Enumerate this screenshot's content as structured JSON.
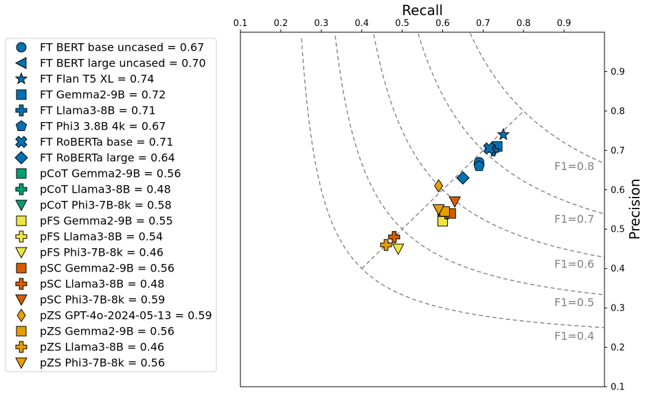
{
  "chart_data": {
    "type": "scatter",
    "title": "",
    "xlabel": "Recall",
    "ylabel": "Precision",
    "xlim": [
      0.1,
      1.0
    ],
    "ylim": [
      0.1,
      1.0
    ],
    "x_ticks": [
      0.1,
      0.2,
      0.3,
      0.4,
      0.5,
      0.6,
      0.7,
      0.8,
      0.9
    ],
    "y_ticks": [
      0.1,
      0.2,
      0.3,
      0.4,
      0.5,
      0.6,
      0.7,
      0.8,
      0.9
    ],
    "x_axis_position": "top",
    "y_axis_position": "right",
    "grid": false,
    "legend_position": "outside-left",
    "iso_f1_curves": [
      {
        "f1": 0.4,
        "label": "F1=0.4"
      },
      {
        "f1": 0.5,
        "label": "F1=0.5"
      },
      {
        "f1": 0.6,
        "label": "F1=0.6"
      },
      {
        "f1": 0.7,
        "label": "F1=0.7"
      },
      {
        "f1": 0.8,
        "label": "F1=0.8"
      }
    ],
    "diagonal": {
      "from": [
        0.4,
        0.4
      ],
      "to": [
        0.8,
        0.8
      ]
    },
    "colors": {
      "ft": "#0072B2",
      "pcot": "#009E73",
      "pfs": "#F0E442",
      "psc": "#D55E00",
      "pzs": "#E69F00",
      "curve": "#808080"
    },
    "series": [
      {
        "name": "FT BERT base uncased = 0.67",
        "marker": "circle",
        "color": "#0072B2",
        "x": 0.69,
        "y": 0.67
      },
      {
        "name": "FT BERT large uncased = 0.70",
        "marker": "triangle-left",
        "color": "#0072B2",
        "x": 0.72,
        "y": 0.705
      },
      {
        "name": "FT Flan T5 XL = 0.74",
        "marker": "star",
        "color": "#0072B2",
        "x": 0.75,
        "y": 0.74
      },
      {
        "name": "FT Gemma2-9B = 0.72",
        "marker": "square",
        "color": "#0072B2",
        "x": 0.735,
        "y": 0.71
      },
      {
        "name": "FT Llama3-8B = 0.71",
        "marker": "plus",
        "color": "#0072B2",
        "x": 0.725,
        "y": 0.7
      },
      {
        "name": "FT Phi3 3.8B 4k = 0.67",
        "marker": "pentagon",
        "color": "#0072B2",
        "x": 0.69,
        "y": 0.66
      },
      {
        "name": "FT RoBERTa base = 0.71",
        "marker": "x",
        "color": "#0072B2",
        "x": 0.715,
        "y": 0.705
      },
      {
        "name": "FT RoBERTa large = 0.64",
        "marker": "diamond",
        "color": "#0072B2",
        "x": 0.65,
        "y": 0.63
      },
      {
        "name": "pCoT Gemma2-9B = 0.56",
        "marker": "square",
        "color": "#009E73",
        "x": 0.6,
        "y": 0.54
      },
      {
        "name": "pCoT Llama3-8B = 0.48",
        "marker": "plus",
        "color": "#009E73",
        "x": 0.48,
        "y": 0.48
      },
      {
        "name": "pCoT Phi3-7B-8k = 0.58",
        "marker": "triangle-down",
        "color": "#009E73",
        "x": 0.59,
        "y": 0.55
      },
      {
        "name": "pFS Gemma2-9B = 0.55",
        "marker": "square",
        "color": "#F0E442",
        "x": 0.6,
        "y": 0.52
      },
      {
        "name": "pFS Llama3-8B = 0.54",
        "marker": "plus",
        "color": "#F0E442",
        "x": 0.61,
        "y": 0.54
      },
      {
        "name": "pFS Phi3-7B-8k = 0.46",
        "marker": "triangle-down",
        "color": "#F0E442",
        "x": 0.49,
        "y": 0.45
      },
      {
        "name": "pSC Gemma2-9B = 0.56",
        "marker": "square",
        "color": "#D55E00",
        "x": 0.62,
        "y": 0.54
      },
      {
        "name": "pSC Llama3-8B = 0.48",
        "marker": "plus",
        "color": "#D55E00",
        "x": 0.48,
        "y": 0.48
      },
      {
        "name": "pSC Phi3-7B-8k = 0.59",
        "marker": "triangle-down",
        "color": "#D55E00",
        "x": 0.63,
        "y": 0.57
      },
      {
        "name": "pZS GPT-4o-2024-05-13 = 0.59",
        "marker": "thin-diamond",
        "color": "#E69F00",
        "x": 0.59,
        "y": 0.61
      },
      {
        "name": "pZS Gemma2-9B = 0.56",
        "marker": "square",
        "color": "#E69F00",
        "x": 0.605,
        "y": 0.545
      },
      {
        "name": "pZS Llama3-8B = 0.46",
        "marker": "plus",
        "color": "#E69F00",
        "x": 0.46,
        "y": 0.46
      },
      {
        "name": "pZS Phi3-7B-8k = 0.56",
        "marker": "triangle-down",
        "color": "#E69F00",
        "x": 0.59,
        "y": 0.55
      }
    ]
  }
}
